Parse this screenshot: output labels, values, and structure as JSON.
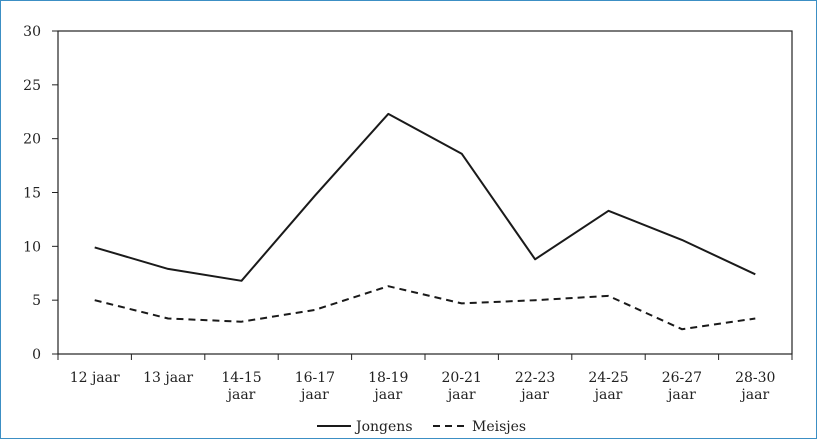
{
  "chart_data": {
    "type": "line",
    "title": "",
    "xlabel": "",
    "ylabel": "",
    "ylim": [
      0,
      30
    ],
    "yticks": [
      0,
      5,
      10,
      15,
      20,
      25,
      30
    ],
    "grid": false,
    "legend_position": "bottom-center",
    "categories": [
      [
        "12 jaar"
      ],
      [
        "13 jaar"
      ],
      [
        "14-15",
        "jaar"
      ],
      [
        "16-17",
        "jaar"
      ],
      [
        "18-19",
        "jaar"
      ],
      [
        "20-21",
        "jaar"
      ],
      [
        "22-23",
        "jaar"
      ],
      [
        "24-25",
        "jaar"
      ],
      [
        "26-27",
        "jaar"
      ],
      [
        "28-30",
        "jaar"
      ]
    ],
    "series": [
      {
        "name": "Jongens",
        "style": "solid",
        "color": "#1a1a1a",
        "values": [
          9.9,
          7.9,
          6.8,
          14.7,
          22.3,
          18.6,
          8.8,
          13.3,
          10.6,
          7.4
        ]
      },
      {
        "name": "Meisjes",
        "style": "dashed",
        "color": "#1a1a1a",
        "values": [
          5.0,
          3.3,
          3.0,
          4.1,
          6.3,
          4.7,
          5.0,
          5.4,
          2.3,
          3.3
        ]
      }
    ]
  }
}
